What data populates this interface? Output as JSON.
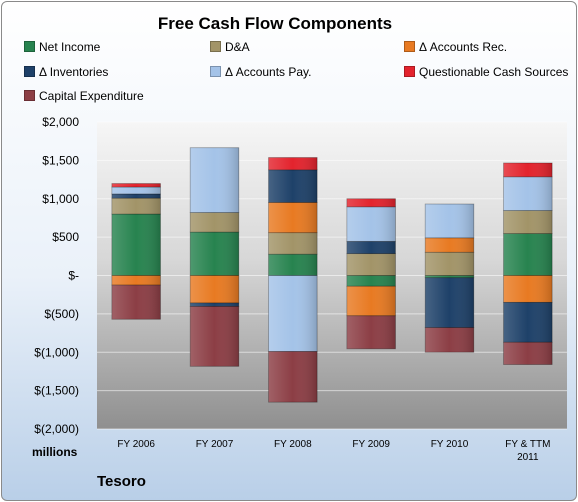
{
  "chart_data": {
    "type": "bar",
    "stacked": true,
    "title": "Free Cash Flow Components",
    "ylabel": "millions",
    "caption": "Tesoro",
    "categories": [
      "FY 2006",
      "FY 2007",
      "FY 2008",
      "FY 2009",
      "FY 2010",
      "FY & TTM 2011"
    ],
    "ylim": [
      -2000,
      2000
    ],
    "yticks": [
      2000,
      1500,
      1000,
      500,
      0,
      -500,
      -1000,
      -1500,
      -2000
    ],
    "ytick_labels": [
      "$2,000",
      "$1,500",
      "$1,000",
      "$500",
      "$-",
      "$(500)",
      "$(1,000)",
      "$(1,500)",
      "$(2,000)"
    ],
    "grid": true,
    "legend_position": "top",
    "series": [
      {
        "name": "Net Income",
        "color": "#27834f",
        "values": [
          801,
          566,
          278,
          -140,
          -29,
          546
        ]
      },
      {
        "name": "D&A",
        "color": "#a29468",
        "values": [
          207,
          254,
          280,
          285,
          303,
          300
        ]
      },
      {
        "name": "Δ Accounts Rec.",
        "color": "#e87a22",
        "values": [
          -125,
          -358,
          394,
          -385,
          188,
          -350
        ]
      },
      {
        "name": "Δ Inventories",
        "color": "#1e4169",
        "values": [
          55,
          -45,
          425,
          160,
          -650,
          -520
        ]
      },
      {
        "name": "Δ Accounts Pay.",
        "color": "#a4c3e8",
        "values": [
          90,
          845,
          -990,
          450,
          440,
          440
        ]
      },
      {
        "name": "Questionable Cash Sources",
        "color": "#e3232d",
        "values": [
          45,
          0,
          160,
          105,
          0,
          180
        ]
      },
      {
        "name": "Capital Expenditure",
        "color": "#8c3e45",
        "values": [
          -445,
          -780,
          -660,
          -430,
          -320,
          -290
        ]
      }
    ]
  }
}
